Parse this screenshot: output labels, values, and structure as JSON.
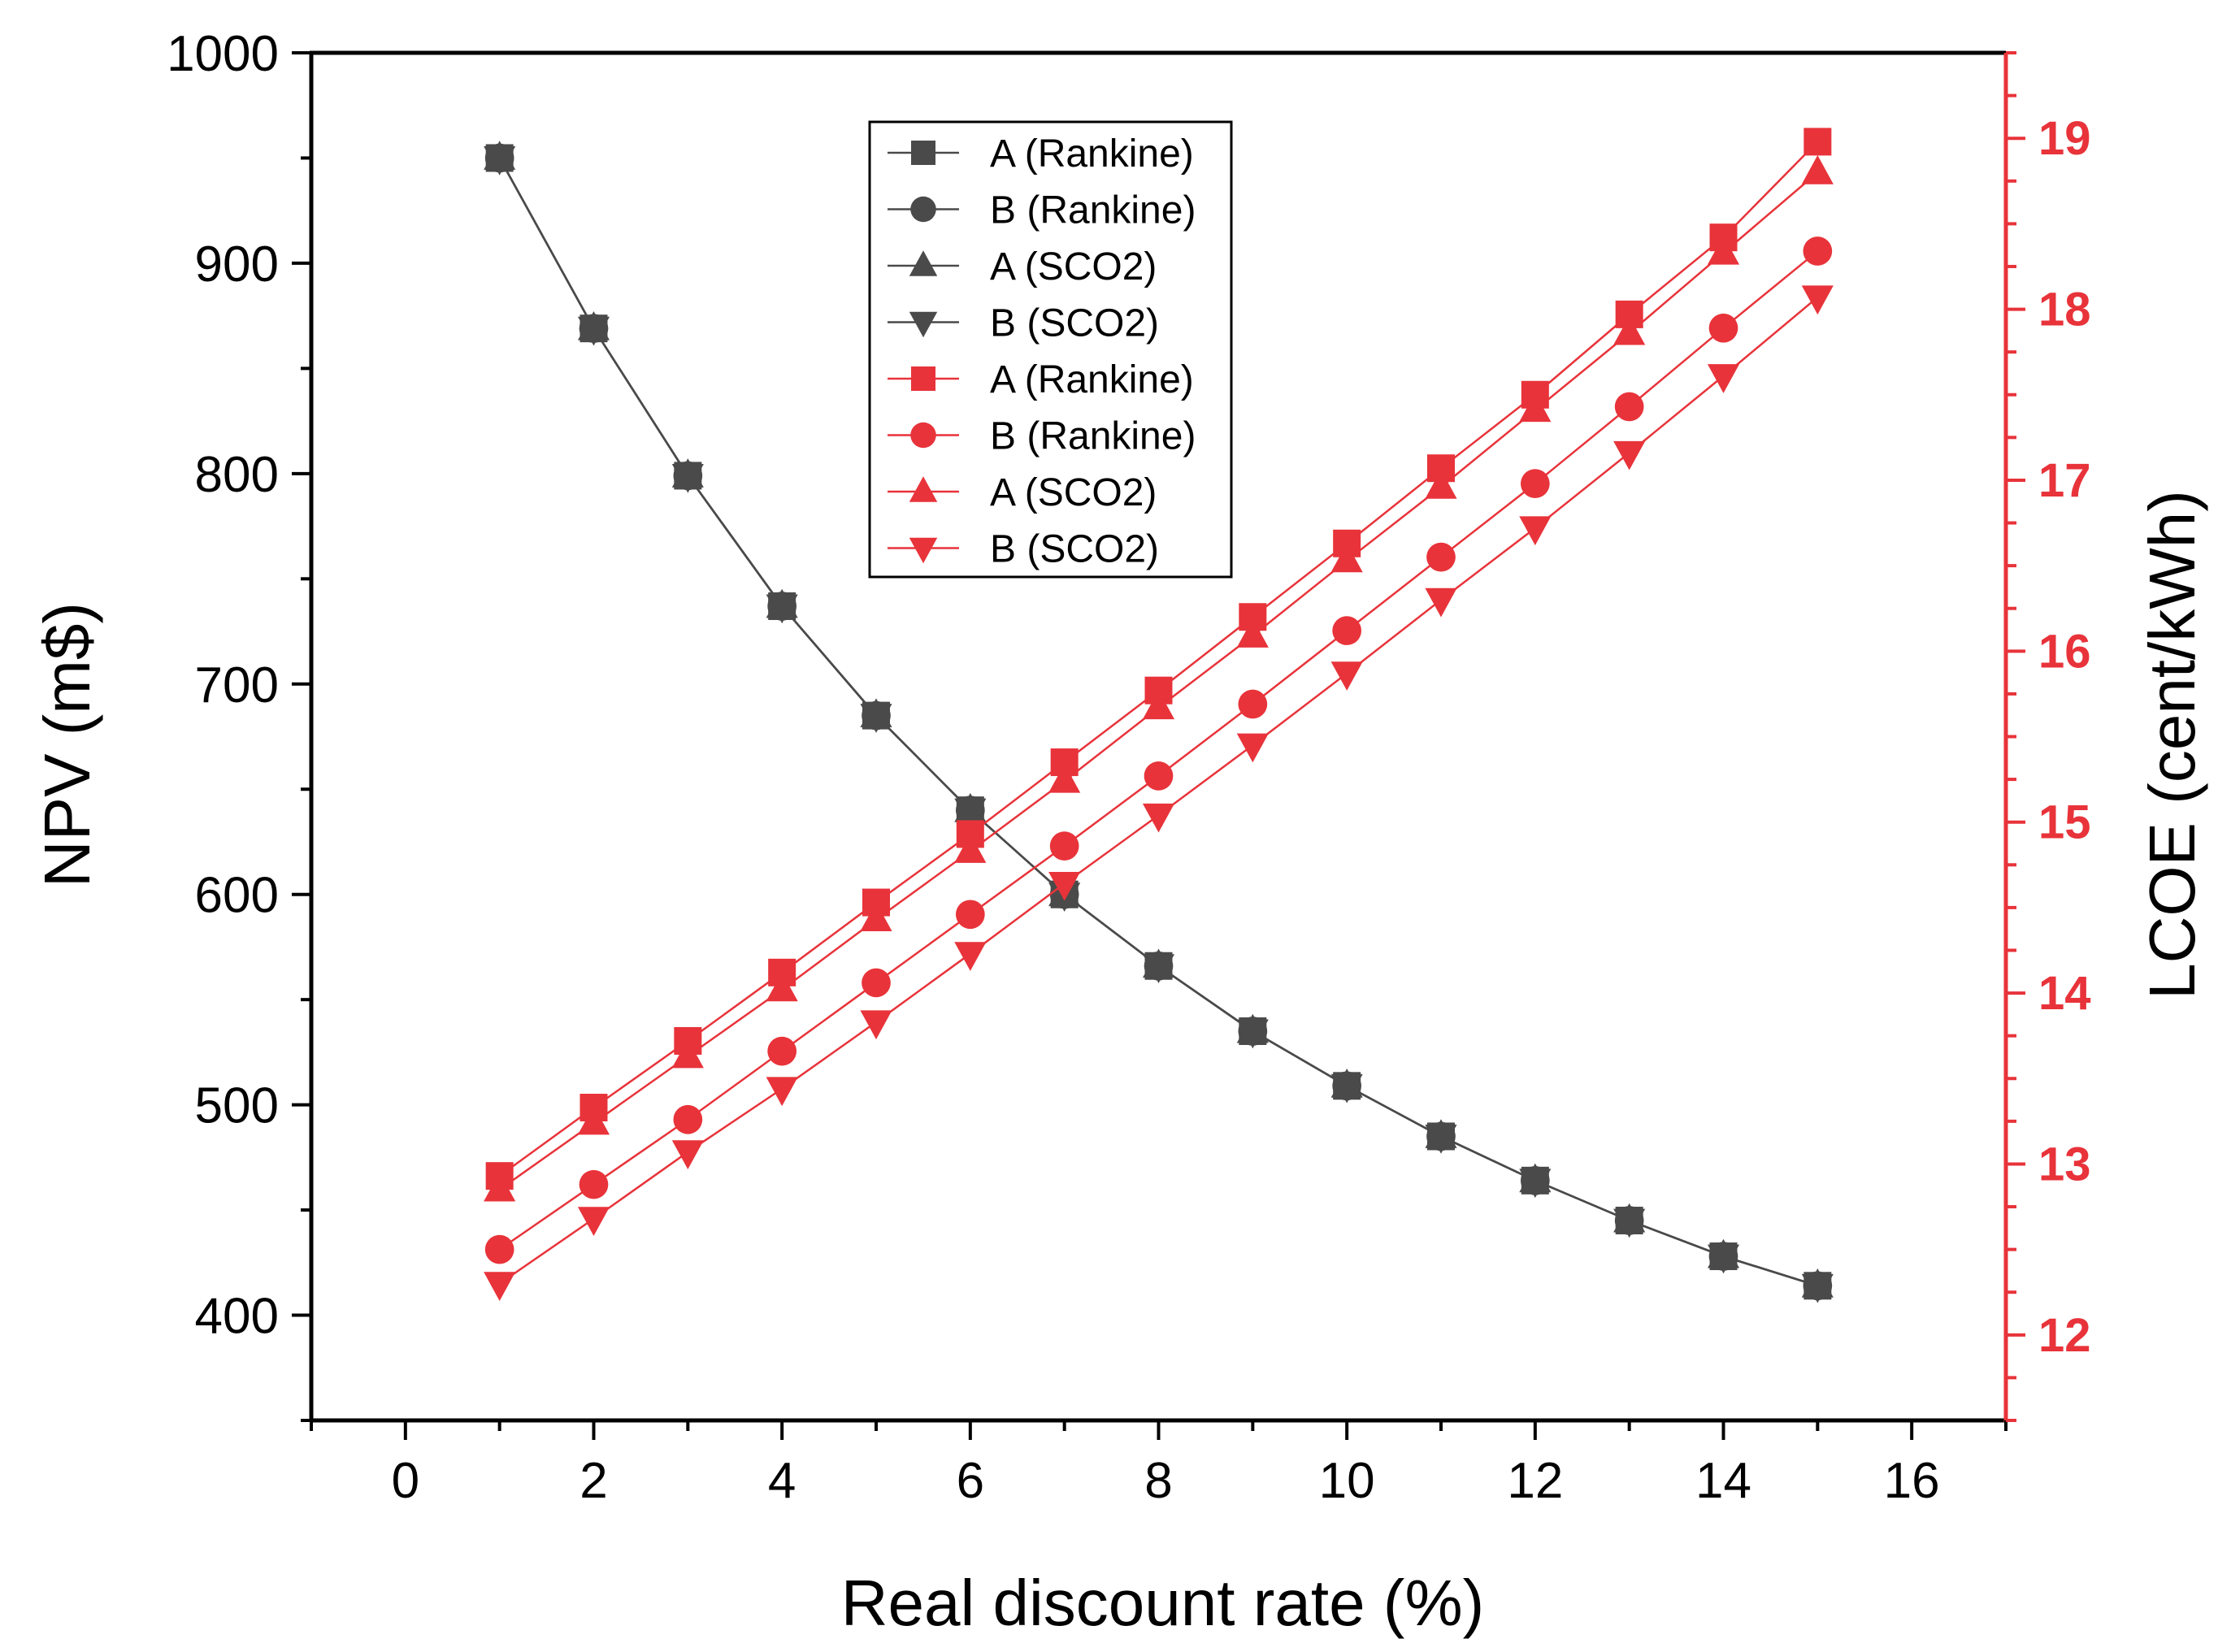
{
  "chart_data": {
    "type": "line",
    "title": "",
    "xlabel": "Real discount rate (%)",
    "ylabel_left": "NPV (m$)",
    "ylabel_right": "LCOE (cent/kWh)",
    "xlim": [
      -1,
      17
    ],
    "ylim_left": [
      350,
      1000
    ],
    "ylim_right": [
      11.5,
      19.5
    ],
    "x_ticks": [
      0,
      2,
      4,
      6,
      8,
      10,
      12,
      14,
      16
    ],
    "y_left_ticks": [
      400,
      500,
      600,
      700,
      800,
      900,
      1000
    ],
    "y_right_ticks": [
      12,
      13,
      14,
      15,
      16,
      17,
      18,
      19
    ],
    "x": [
      1,
      2,
      3,
      4,
      5,
      6,
      7,
      8,
      9,
      10,
      11,
      12,
      13,
      14,
      15
    ],
    "legend_position": "top-center",
    "colors": {
      "npv": "#4a4a4a",
      "lcoe": "#e8333a"
    },
    "series": [
      {
        "name": "A (Rankine)",
        "axis": "left",
        "marker": "square",
        "color": "#4a4a4a",
        "values": [
          950,
          869,
          799,
          737,
          685,
          640,
          600,
          566,
          535,
          509,
          485,
          464,
          445,
          428,
          414
        ]
      },
      {
        "name": "B (Rankine)",
        "axis": "left",
        "marker": "circle",
        "color": "#4a4a4a",
        "values": [
          950,
          869,
          799,
          737,
          685,
          640,
          600,
          566,
          535,
          509,
          485,
          464,
          445,
          428,
          414
        ]
      },
      {
        "name": "A (SCO2)",
        "axis": "left",
        "marker": "triangle-up",
        "color": "#4a4a4a",
        "values": [
          950,
          869,
          799,
          737,
          685,
          640,
          600,
          566,
          535,
          509,
          485,
          464,
          445,
          428,
          414
        ]
      },
      {
        "name": "B (SCO2)",
        "axis": "left",
        "marker": "triangle-down",
        "color": "#4a4a4a",
        "values": [
          950,
          869,
          799,
          737,
          685,
          640,
          600,
          566,
          535,
          509,
          485,
          464,
          445,
          428,
          414
        ]
      },
      {
        "name": "A (Rankine)",
        "axis": "right",
        "marker": "square",
        "color": "#e8333a",
        "values": [
          12.93,
          13.33,
          13.72,
          14.12,
          14.53,
          14.93,
          15.35,
          15.77,
          16.2,
          16.63,
          17.07,
          17.5,
          17.97,
          18.42,
          18.98
        ]
      },
      {
        "name": "B (Rankine)",
        "axis": "right",
        "marker": "circle",
        "color": "#e8333a",
        "values": [
          12.5,
          12.88,
          13.26,
          13.66,
          14.06,
          14.46,
          14.86,
          15.27,
          15.69,
          16.12,
          16.55,
          16.98,
          17.43,
          17.89,
          18.34
        ]
      },
      {
        "name": "A (SCO2)",
        "axis": "right",
        "marker": "triangle-up",
        "color": "#e8333a",
        "values": [
          12.85,
          13.24,
          13.63,
          14.02,
          14.43,
          14.83,
          15.24,
          15.67,
          16.09,
          16.53,
          16.96,
          17.41,
          17.86,
          18.33,
          18.8
        ]
      },
      {
        "name": "B (SCO2)",
        "axis": "right",
        "marker": "triangle-down",
        "color": "#e8333a",
        "values": [
          12.3,
          12.68,
          13.07,
          13.44,
          13.83,
          14.23,
          14.64,
          15.04,
          15.45,
          15.87,
          16.3,
          16.72,
          17.16,
          17.61,
          18.07
        ]
      }
    ]
  }
}
